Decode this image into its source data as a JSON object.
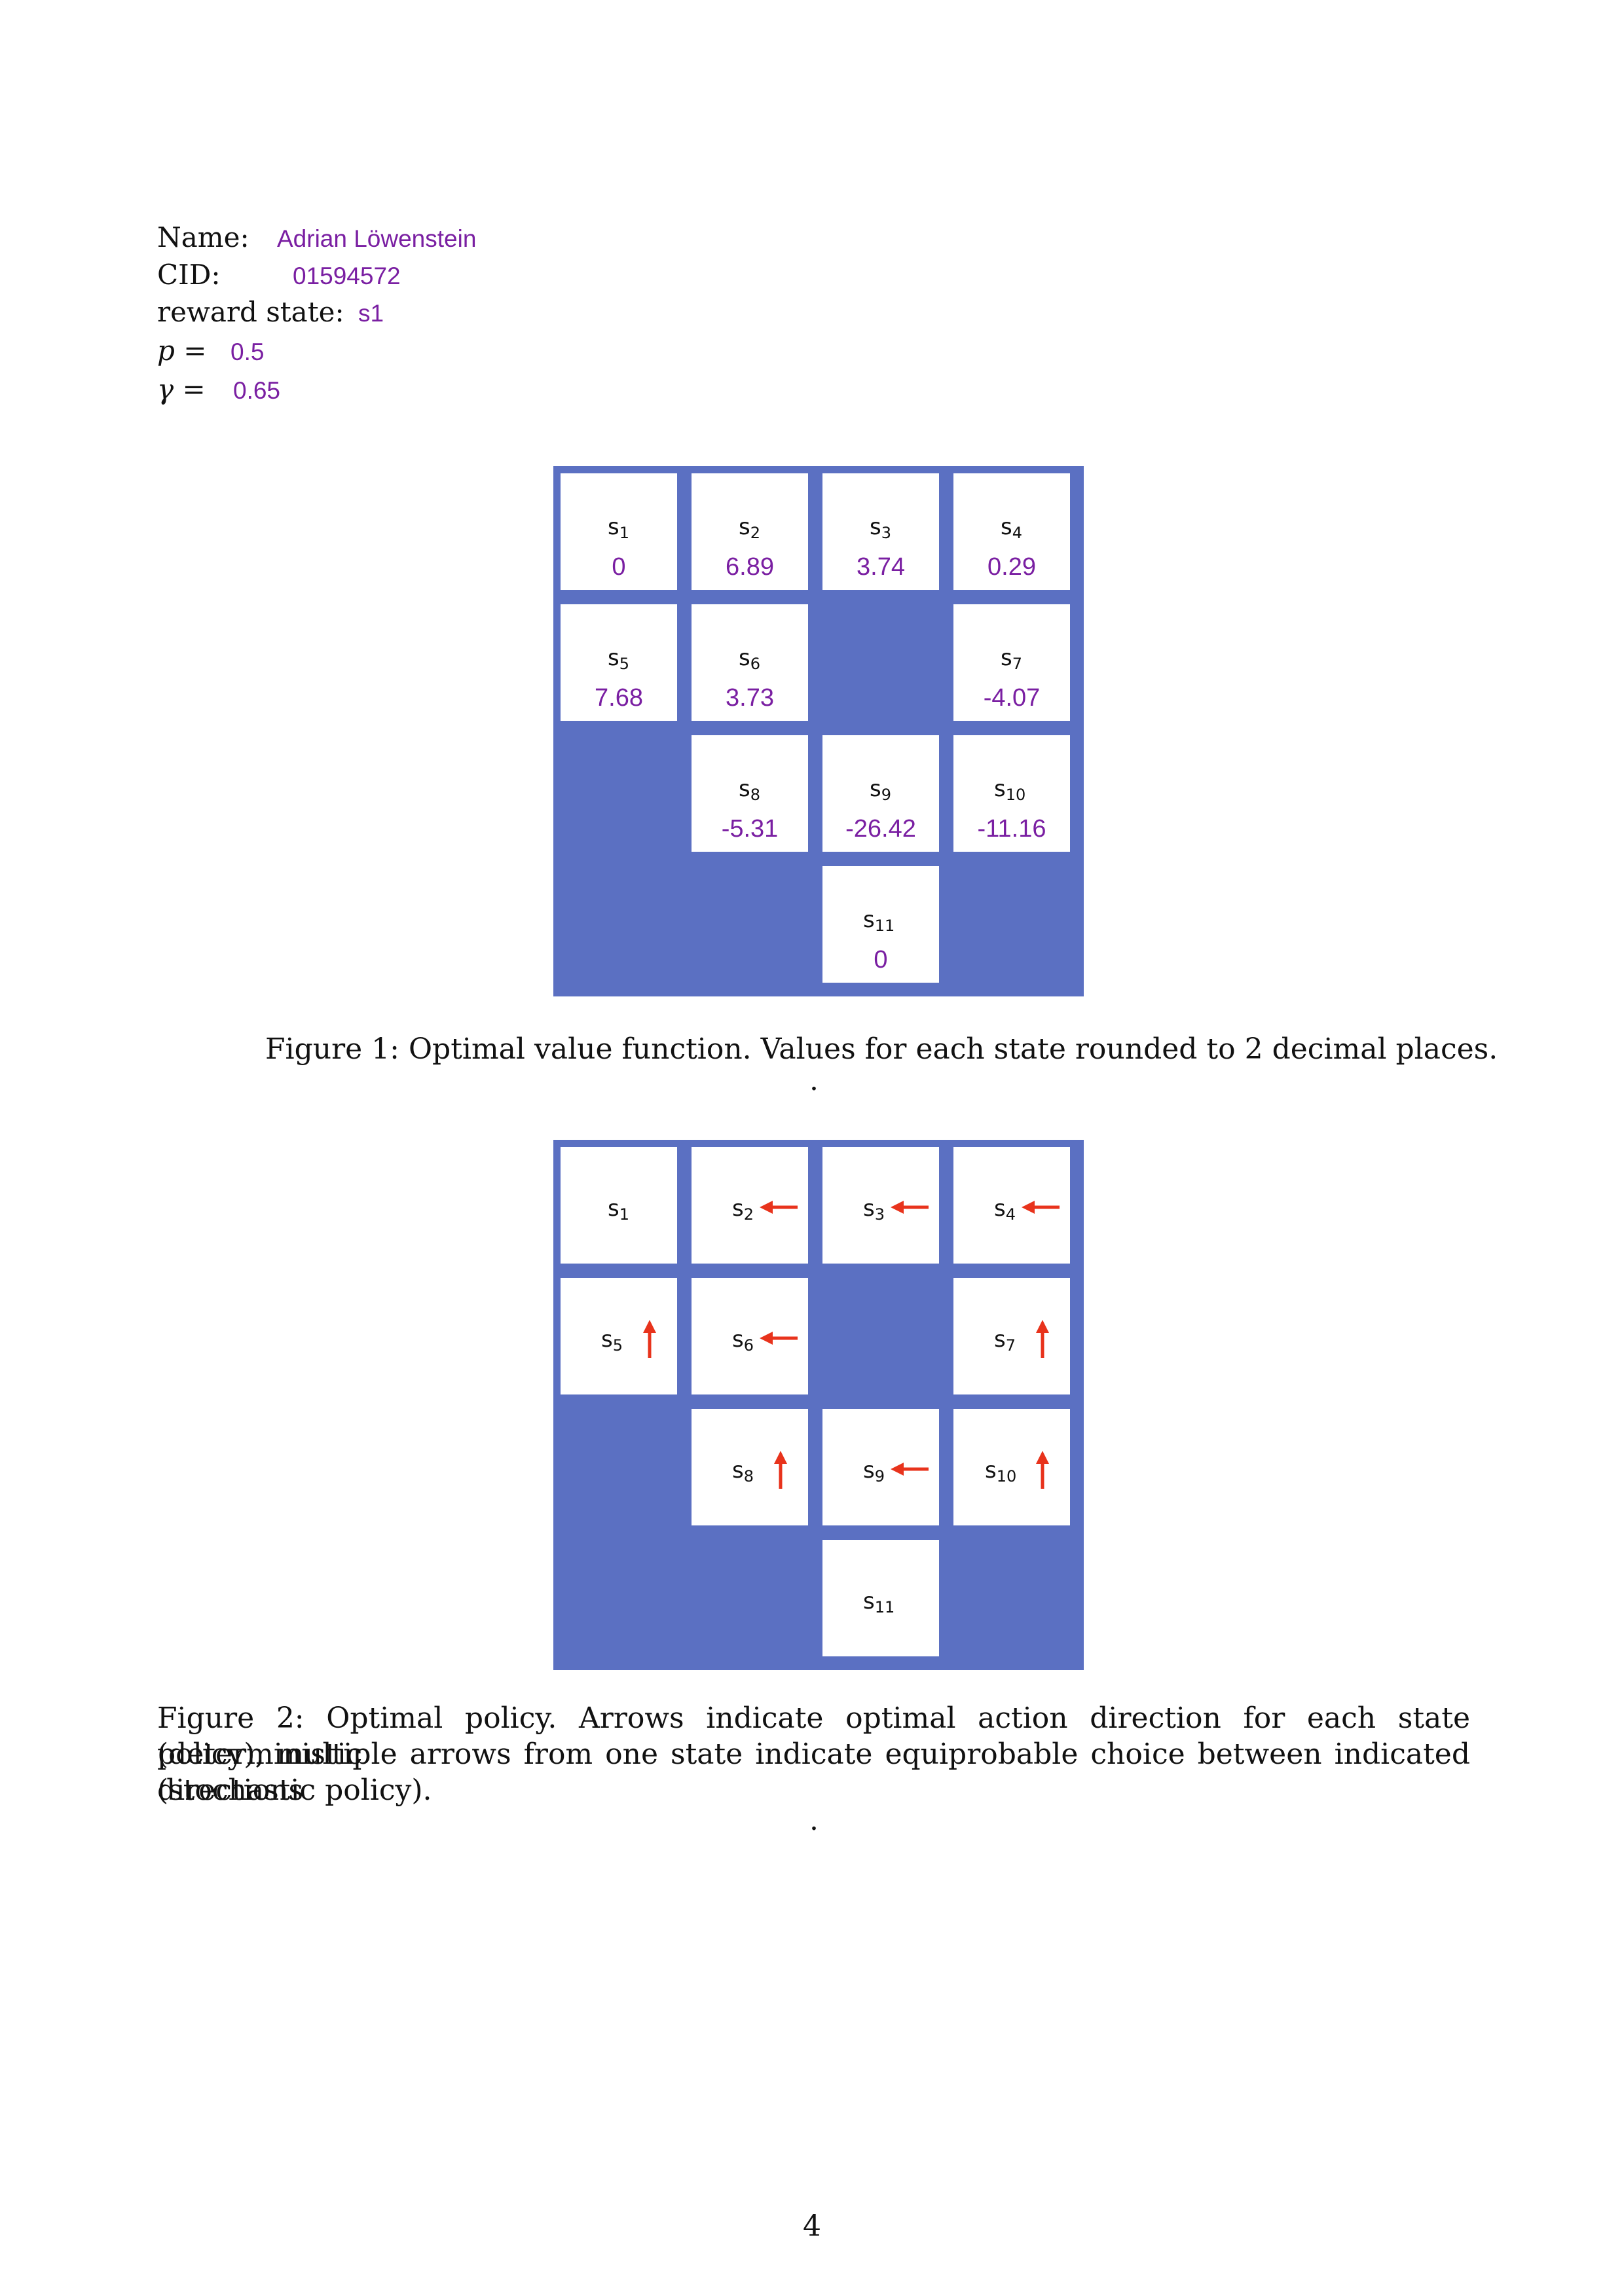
{
  "header": {
    "name_label": "Name:",
    "name_value": "Adrian Löwenstein",
    "cid_label": "CID:",
    "cid_value": "01594572",
    "reward_label": "reward state:",
    "reward_value": "s1",
    "p_label": "p =",
    "p_value": "0.5",
    "gamma_label": "γ =",
    "gamma_value": "0.65"
  },
  "figure1": {
    "states": [
      {
        "base": "s",
        "sub": "1",
        "value": "0"
      },
      {
        "base": "s",
        "sub": "2",
        "value": "6.89"
      },
      {
        "base": "s",
        "sub": "3",
        "value": "3.74"
      },
      {
        "base": "s",
        "sub": "4",
        "value": "0.29"
      },
      {
        "base": "s",
        "sub": "5",
        "value": "7.68"
      },
      {
        "base": "s",
        "sub": "6",
        "value": "3.73"
      },
      {
        "base": "s",
        "sub": "7",
        "value": "-4.07"
      },
      {
        "base": "s",
        "sub": "8",
        "value": "-5.31"
      },
      {
        "base": "s",
        "sub": "9",
        "value": "-26.42"
      },
      {
        "base": "s",
        "sub": "10",
        "value": "-11.16"
      },
      {
        "base": "s",
        "sub": "11",
        "value": "0"
      }
    ],
    "caption": "Figure 1: Optimal value function. Values for each state rounded to 2 decimal places.",
    "trailing": "."
  },
  "figure2": {
    "states": [
      {
        "base": "s",
        "sub": "1",
        "arrow": "none"
      },
      {
        "base": "s",
        "sub": "2",
        "arrow": "left"
      },
      {
        "base": "s",
        "sub": "3",
        "arrow": "left"
      },
      {
        "base": "s",
        "sub": "4",
        "arrow": "left"
      },
      {
        "base": "s",
        "sub": "5",
        "arrow": "up"
      },
      {
        "base": "s",
        "sub": "6",
        "arrow": "left"
      },
      {
        "base": "s",
        "sub": "7",
        "arrow": "up"
      },
      {
        "base": "s",
        "sub": "8",
        "arrow": "up"
      },
      {
        "base": "s",
        "sub": "9",
        "arrow": "left"
      },
      {
        "base": "s",
        "sub": "10",
        "arrow": "up"
      },
      {
        "base": "s",
        "sub": "11",
        "arrow": "none"
      }
    ],
    "caption_line1": "Figure 2: Optimal policy. Arrows indicate optimal action direction for each state (deterministic",
    "caption_line2": "policy), multiple arrows from one state indicate equiprobable choice between indicated directions",
    "caption_line3": "(stochastic policy).",
    "trailing": "."
  },
  "colors": {
    "wall": "#5b70c2",
    "value_text": "#7a1fa2",
    "arrow": "#e8331c"
  },
  "page_number": "4"
}
